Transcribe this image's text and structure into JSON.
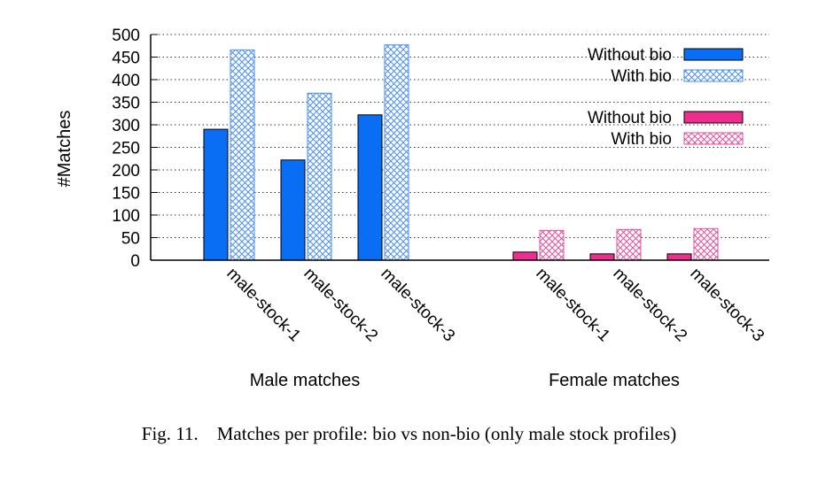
{
  "chart_data": {
    "type": "bar",
    "ylabel": "#Matches",
    "ylim": [
      0,
      500
    ],
    "yticks": [
      0,
      50,
      100,
      150,
      200,
      250,
      300,
      350,
      400,
      450,
      500
    ],
    "grid": "horizontal-dotted",
    "colors": {
      "male_solid": "#0a6ef5",
      "male_hatch": "#4b8ff0",
      "female_solid": "#ee2e8e",
      "female_hatch": "#e0529c"
    },
    "groups": [
      {
        "name": "Male matches",
        "categories": [
          "male-stock-1",
          "male-stock-2",
          "male-stock-3"
        ],
        "series": [
          {
            "name": "Without bio",
            "style": "solid",
            "values": [
              290,
              222,
              322
            ]
          },
          {
            "name": "With bio",
            "style": "hatched",
            "values": [
              466,
              370,
              477
            ]
          }
        ]
      },
      {
        "name": "Female matches",
        "categories": [
          "male-stock-1",
          "male-stock-2",
          "male-stock-3"
        ],
        "series": [
          {
            "name": "Without bio",
            "style": "solid",
            "values": [
              18,
              14,
              14
            ]
          },
          {
            "name": "With bio",
            "style": "hatched",
            "values": [
              66,
              68,
              70
            ]
          }
        ]
      }
    ],
    "legend": [
      {
        "label": "Without bio",
        "group": "Male matches",
        "style": "solid"
      },
      {
        "label": "With bio",
        "group": "Male matches",
        "style": "hatched"
      },
      {
        "label": "Without bio",
        "group": "Female matches",
        "style": "solid"
      },
      {
        "label": "With bio",
        "group": "Female matches",
        "style": "hatched"
      }
    ],
    "legend_position": "top-right"
  },
  "caption": {
    "label": "Fig. 11.",
    "text": "Matches per profile: bio vs non-bio (only male stock profiles)"
  }
}
